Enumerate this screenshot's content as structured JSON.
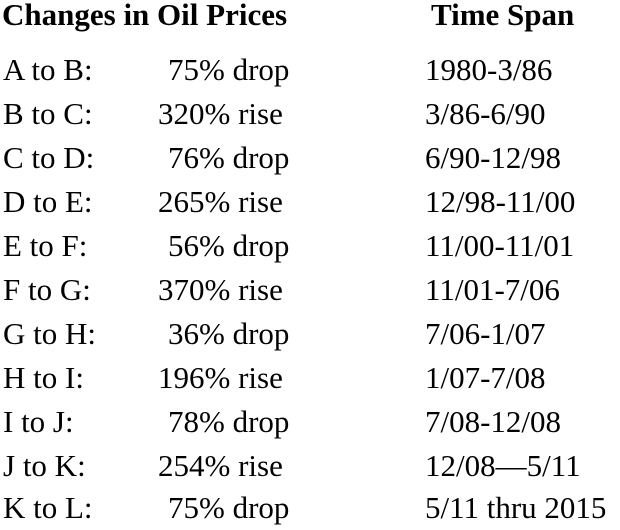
{
  "headers": {
    "change": "Changes in Oil Prices",
    "span": "Time Span"
  },
  "rows": [
    {
      "segment": "A to B:",
      "change": "75% drop",
      "kind": "drop",
      "span": "1980-3/86"
    },
    {
      "segment": "B to C:",
      "change": "320% rise",
      "kind": "rise",
      "span": "3/86-6/90"
    },
    {
      "segment": "C to D:",
      "change": "76% drop",
      "kind": "drop",
      "span": "6/90-12/98"
    },
    {
      "segment": "D to E:",
      "change": "265% rise",
      "kind": "rise",
      "span": "12/98-11/00"
    },
    {
      "segment": "E to F:",
      "change": "56% drop",
      "kind": "drop",
      "span": "11/00-11/01"
    },
    {
      "segment": "F to G:",
      "change": "370% rise",
      "kind": "rise",
      "span": "11/01-7/06"
    },
    {
      "segment": "G to H:",
      "change": "36% drop",
      "kind": "drop",
      "span": "7/06-1/07"
    },
    {
      "segment": "H to I:",
      "change": "196% rise",
      "kind": "rise",
      "span": "1/07-7/08"
    },
    {
      "segment": "I to J:",
      "change": "78% drop",
      "kind": "drop",
      "span": "7/08-12/08"
    },
    {
      "segment": "J to K:",
      "change": "254% rise",
      "kind": "rise",
      "span": "12/08—5/11"
    },
    {
      "segment": "K to L:",
      "change": "75% drop",
      "kind": "drop",
      "span": "5/11 thru 2015"
    }
  ]
}
